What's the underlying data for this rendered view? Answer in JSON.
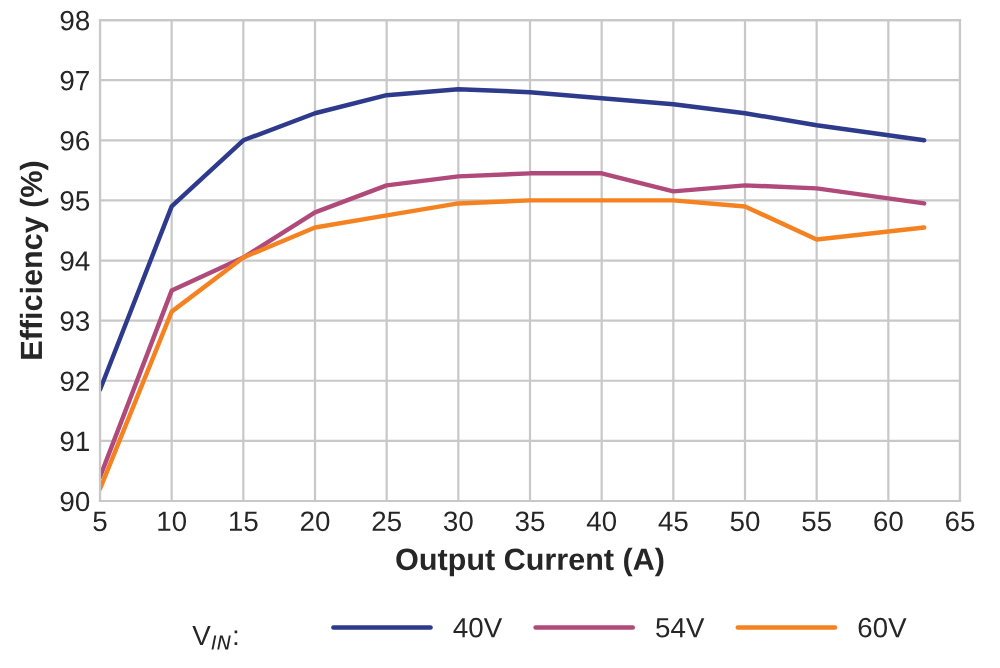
{
  "chart_data": {
    "type": "line",
    "xlabel": "Output Current (A)",
    "ylabel": "Efficiency (%)",
    "legend_title": "V$_{IN}$:",
    "x": [
      5,
      10,
      15,
      20,
      25,
      30,
      35,
      40,
      45,
      50,
      55,
      62.5
    ],
    "series": [
      {
        "name": "40V",
        "color": "#2e3a8c",
        "values": [
          91.85,
          94.9,
          96.0,
          96.45,
          96.75,
          96.85,
          96.8,
          96.7,
          96.6,
          96.45,
          96.25,
          96.0
        ]
      },
      {
        "name": "54V",
        "color": "#b04a7a",
        "values": [
          90.4,
          93.5,
          94.05,
          94.8,
          95.25,
          95.4,
          95.45,
          95.45,
          95.15,
          95.25,
          95.2,
          94.95
        ]
      },
      {
        "name": "60V",
        "color": "#f58220",
        "values": [
          90.2,
          93.15,
          94.05,
          94.55,
          94.75,
          94.95,
          95.0,
          95.0,
          95.0,
          94.9,
          94.35,
          94.55
        ]
      }
    ],
    "xlim": [
      5,
      65
    ],
    "xticks": [
      5,
      10,
      15,
      20,
      25,
      30,
      35,
      40,
      45,
      50,
      55,
      60,
      65
    ],
    "ylim": [
      90,
      98
    ],
    "yticks": [
      90,
      91,
      92,
      93,
      94,
      95,
      96,
      97,
      98
    ],
    "grid": true,
    "legend": "bottom",
    "marker": "none",
    "line_style": "solid"
  }
}
